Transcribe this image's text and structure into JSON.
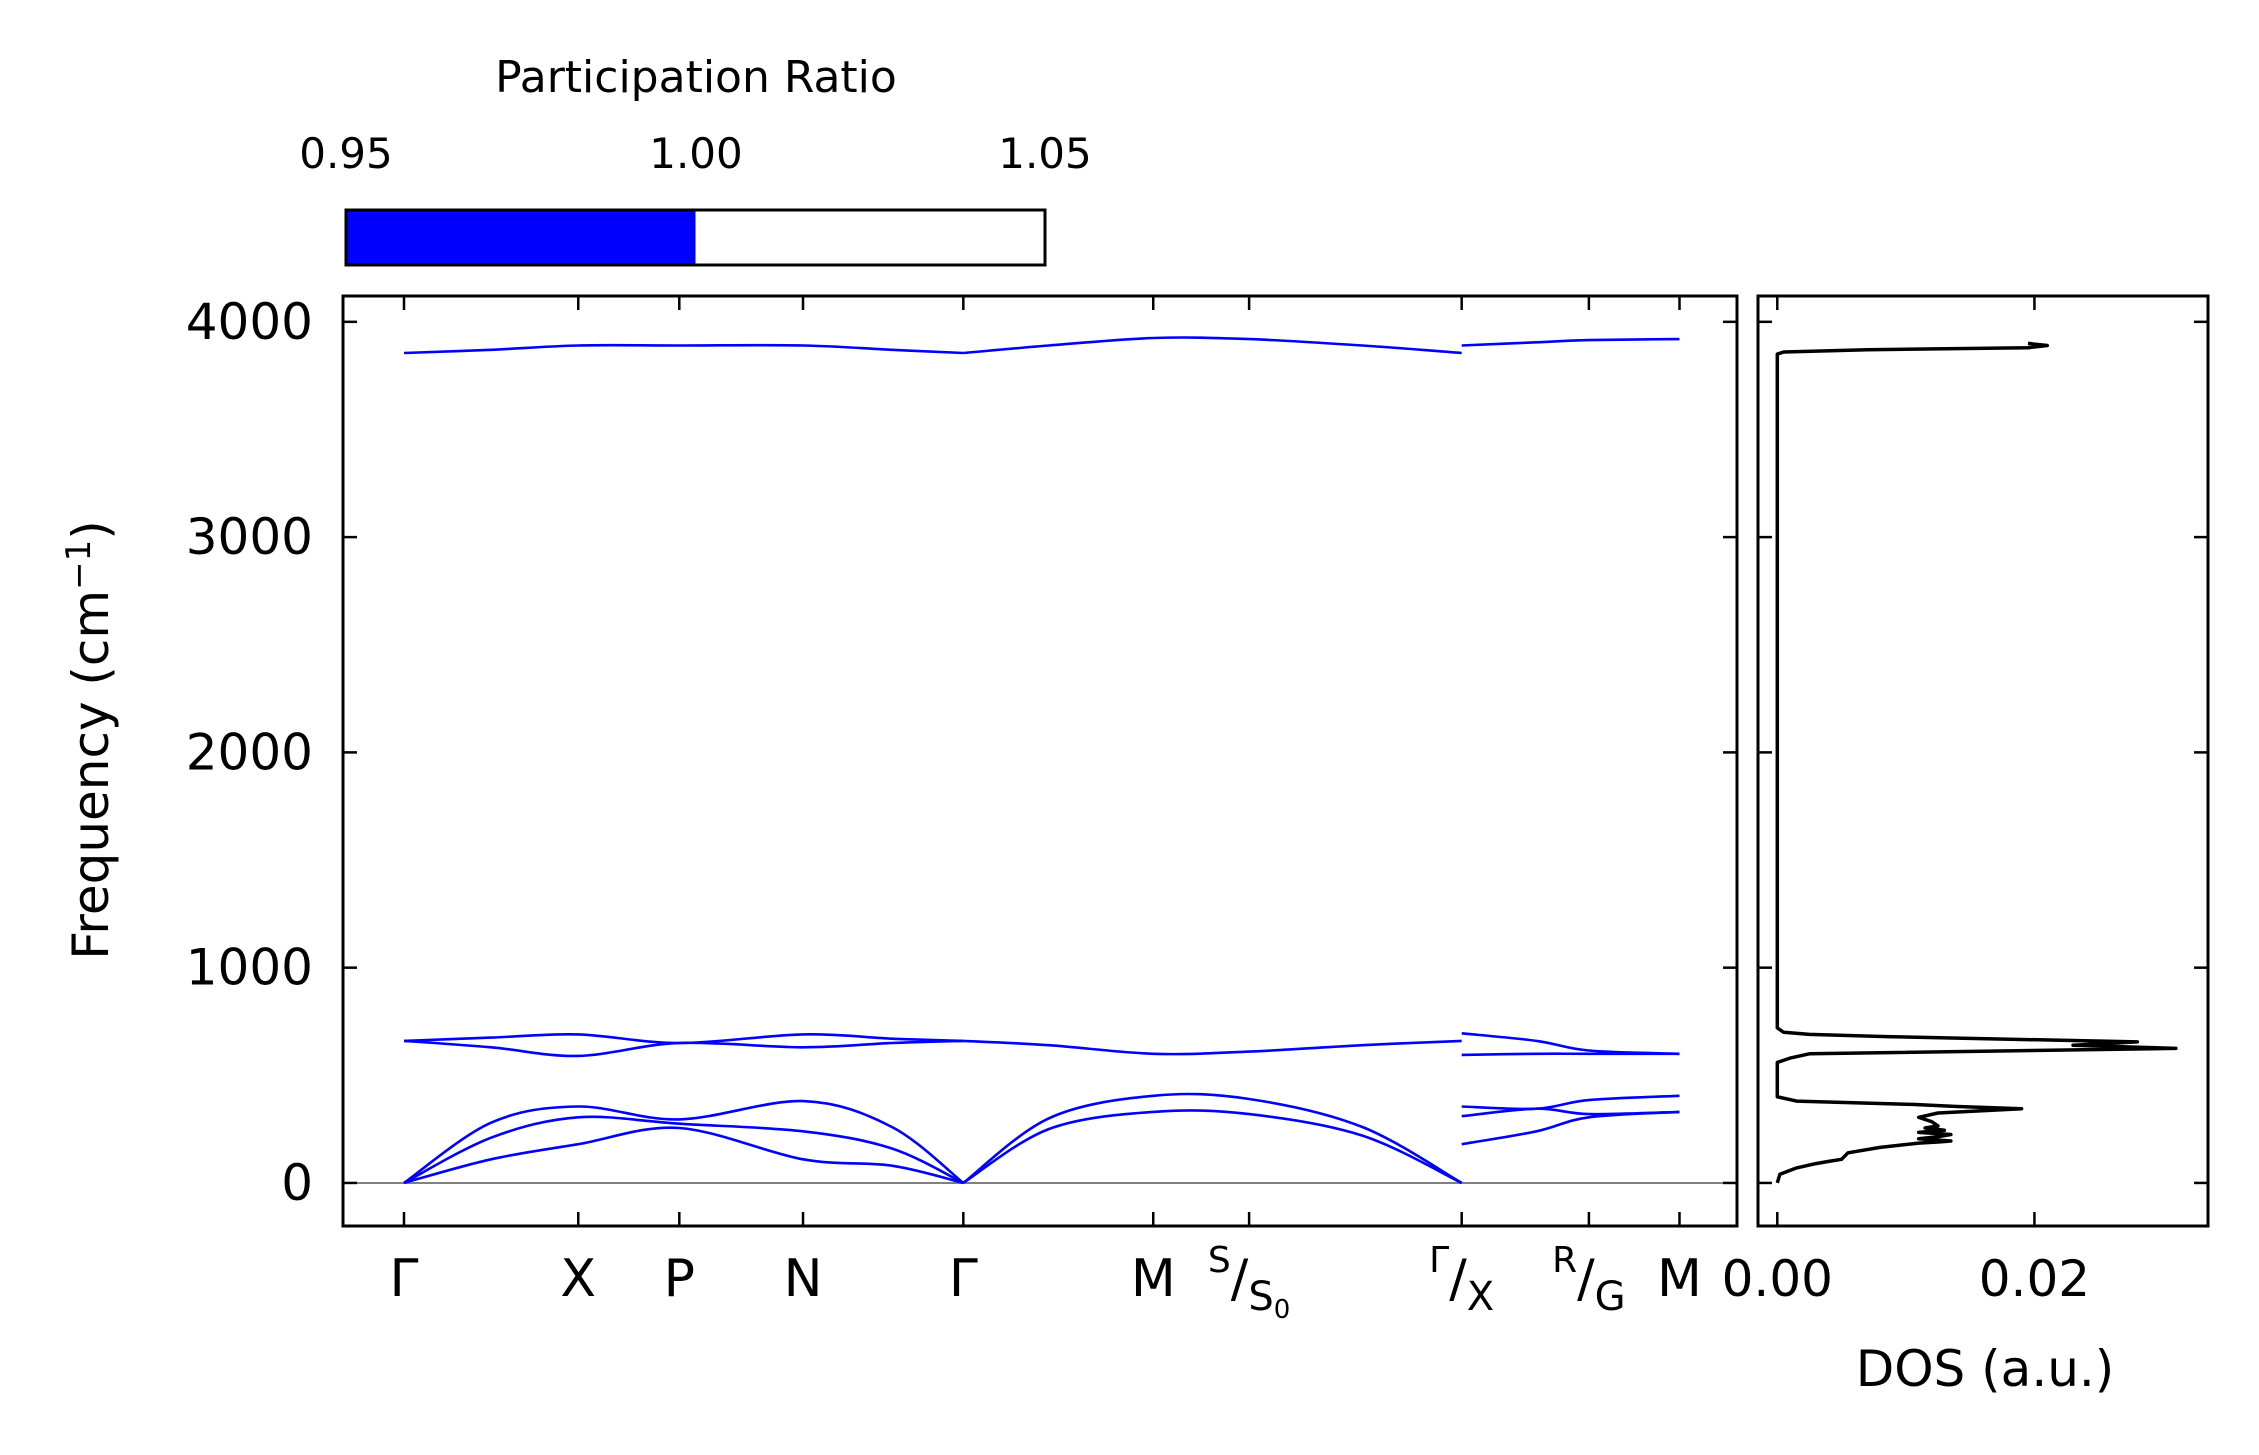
{
  "chart_data": [
    {
      "type": "line",
      "name": "phonon-band-structure",
      "ylabel": "Frequency (cm",
      "ylabel_sup": "−1",
      "ylabel_close": ")",
      "ylim": [
        -200,
        4120
      ],
      "yticks": [
        0,
        1000,
        2000,
        3000,
        4000
      ],
      "ytick_labels": [
        "0",
        "1000",
        "2000",
        "3000",
        "4000"
      ],
      "zero_line": true,
      "kpath_labels": [
        {
          "main": "Γ",
          "pos": 0.0
        },
        {
          "main": "X",
          "pos": 1.0
        },
        {
          "main": "P",
          "pos": 1.58
        },
        {
          "main": "N",
          "pos": 2.29
        },
        {
          "main": "Γ",
          "pos": 3.21
        },
        {
          "main": "M",
          "pos": 4.3
        },
        {
          "sup": "S",
          "main": "S",
          "sub": "0",
          "pos": 4.85
        },
        {
          "sup": "Γ",
          "main": "X",
          "pos": 6.07
        },
        {
          "sup": "R",
          "main": "G",
          "pos": 6.8
        },
        {
          "main": "M",
          "pos": 7.32
        }
      ],
      "xlim": [
        -0.35,
        7.65
      ],
      "break_at": 6.07,
      "series_color": "#0000ff",
      "segments": [
        {
          "name": "segment-1",
          "bands": [
            [
              [
                0,
                3855
              ],
              [
                0.5,
                3870
              ],
              [
                1,
                3890
              ],
              [
                1.58,
                3890
              ],
              [
                2.29,
                3890
              ],
              [
                2.8,
                3870
              ],
              [
                3.21,
                3855
              ]
            ],
            [
              [
                0,
                660
              ],
              [
                0.5,
                675
              ],
              [
                1,
                690
              ],
              [
                1.58,
                650
              ],
              [
                2.29,
                690
              ],
              [
                2.8,
                670
              ],
              [
                3.21,
                660
              ]
            ],
            [
              [
                0,
                660
              ],
              [
                0.5,
                630
              ],
              [
                1,
                590
              ],
              [
                1.58,
                650
              ],
              [
                2.29,
                630
              ],
              [
                2.8,
                650
              ],
              [
                3.21,
                660
              ]
            ],
            [
              [
                0,
                0
              ],
              [
                0.5,
                280
              ],
              [
                1,
                355
              ],
              [
                1.58,
                295
              ],
              [
                2.29,
                380
              ],
              [
                2.8,
                260
              ],
              [
                3.21,
                0
              ]
            ],
            [
              [
                0,
                0
              ],
              [
                0.5,
                210
              ],
              [
                1,
                305
              ],
              [
                1.58,
                275
              ],
              [
                2.29,
                240
              ],
              [
                2.8,
                160
              ],
              [
                3.21,
                0
              ]
            ],
            [
              [
                0,
                0
              ],
              [
                0.5,
                110
              ],
              [
                1,
                180
              ],
              [
                1.58,
                255
              ],
              [
                2.29,
                110
              ],
              [
                2.8,
                80
              ],
              [
                3.21,
                0
              ]
            ]
          ]
        },
        {
          "name": "segment-2",
          "bands": [
            [
              [
                3.21,
                3855
              ],
              [
                3.7,
                3890
              ],
              [
                4.3,
                3925
              ],
              [
                4.85,
                3920
              ],
              [
                5.5,
                3890
              ],
              [
                6.07,
                3855
              ]
            ],
            [
              [
                3.21,
                660
              ],
              [
                3.7,
                640
              ],
              [
                4.3,
                600
              ],
              [
                4.85,
                610
              ],
              [
                5.5,
                640
              ],
              [
                6.07,
                660
              ]
            ],
            [
              [
                3.21,
                0
              ],
              [
                3.7,
                300
              ],
              [
                4.3,
                405
              ],
              [
                4.85,
                390
              ],
              [
                5.5,
                260
              ],
              [
                6.07,
                0
              ]
            ],
            [
              [
                3.21,
                0
              ],
              [
                3.7,
                250
              ],
              [
                4.3,
                330
              ],
              [
                4.85,
                320
              ],
              [
                5.5,
                220
              ],
              [
                6.07,
                0
              ]
            ]
          ]
        },
        {
          "name": "segment-3",
          "bands": [
            [
              [
                6.07,
                3890
              ],
              [
                6.5,
                3905
              ],
              [
                6.8,
                3915
              ],
              [
                7.32,
                3920
              ]
            ],
            [
              [
                6.07,
                695
              ],
              [
                6.5,
                660
              ],
              [
                6.8,
                615
              ],
              [
                7.32,
                600
              ]
            ],
            [
              [
                6.07,
                595
              ],
              [
                6.5,
                600
              ],
              [
                6.8,
                600
              ],
              [
                7.32,
                600
              ]
            ],
            [
              [
                6.07,
                355
              ],
              [
                6.5,
                345
              ],
              [
                6.8,
                385
              ],
              [
                7.32,
                405
              ]
            ],
            [
              [
                6.07,
                310
              ],
              [
                6.5,
                345
              ],
              [
                6.8,
                320
              ],
              [
                7.32,
                330
              ]
            ],
            [
              [
                6.07,
                180
              ],
              [
                6.5,
                240
              ],
              [
                6.8,
                305
              ],
              [
                7.32,
                330
              ]
            ]
          ]
        }
      ]
    },
    {
      "type": "line",
      "name": "density-of-states",
      "xlabel": "DOS (a.u.)",
      "xlim": [
        -0.0015,
        0.0335
      ],
      "xticks": [
        0.0,
        0.02
      ],
      "xtick_labels": [
        "0.00",
        "0.02"
      ],
      "ylim": [
        -200,
        4120
      ],
      "series_color": "#000000",
      "points": [
        [
          0.0,
          0
        ],
        [
          0.0002,
          40
        ],
        [
          0.0015,
          70
        ],
        [
          0.003,
          90
        ],
        [
          0.004,
          100
        ],
        [
          0.005,
          110
        ],
        [
          0.0055,
          140
        ],
        [
          0.008,
          165
        ],
        [
          0.011,
          185
        ],
        [
          0.0125,
          190
        ],
        [
          0.0135,
          195
        ],
        [
          0.011,
          205
        ],
        [
          0.0125,
          215
        ],
        [
          0.0135,
          225
        ],
        [
          0.011,
          235
        ],
        [
          0.013,
          245
        ],
        [
          0.0115,
          255
        ],
        [
          0.0125,
          265
        ],
        [
          0.012,
          285
        ],
        [
          0.011,
          305
        ],
        [
          0.0125,
          325
        ],
        [
          0.019,
          345
        ],
        [
          0.014,
          355
        ],
        [
          0.0105,
          365
        ],
        [
          0.0015,
          380
        ],
        [
          0.0,
          400
        ],
        [
          0.0,
          560
        ],
        [
          0.001,
          580
        ],
        [
          0.0025,
          600
        ],
        [
          0.031,
          625
        ],
        [
          0.023,
          640
        ],
        [
          0.028,
          655
        ],
        [
          0.0085,
          680
        ],
        [
          0.0025,
          690
        ],
        [
          0.0005,
          700
        ],
        [
          0.0,
          720
        ],
        [
          0.0,
          3850
        ],
        [
          0.0005,
          3860
        ],
        [
          0.007,
          3870
        ],
        [
          0.0195,
          3880
        ],
        [
          0.021,
          3890
        ],
        [
          0.0195,
          3900
        ]
      ]
    }
  ],
  "colorbar": {
    "title": "Participation Ratio",
    "tick_labels": [
      "0.95",
      "1.00",
      "1.05"
    ],
    "min": 0.95,
    "max": 1.05,
    "fill_to": 1.0,
    "fill_color": "#0000ff",
    "empty_color": "#ffffff"
  },
  "colors": {
    "axis": "#000000",
    "zero_line": "#808080"
  }
}
